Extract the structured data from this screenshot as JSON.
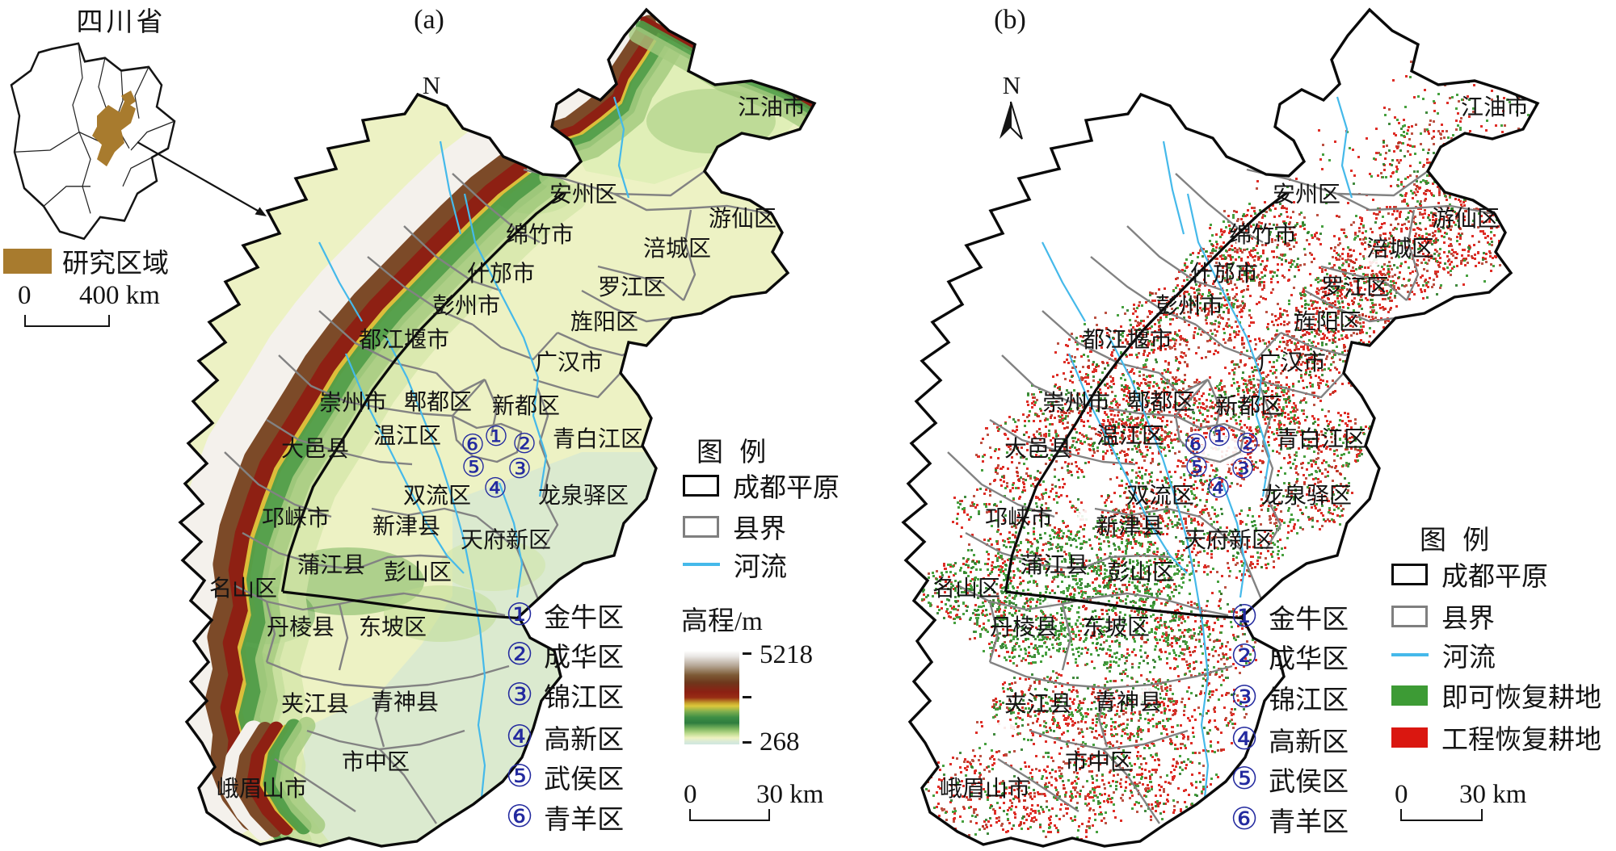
{
  "figure": {
    "inset": {
      "title": "四川省",
      "legend_label": "研究区域",
      "scalebar": {
        "start": "0",
        "end": "400 km"
      }
    },
    "panel_a": {
      "label": "(a)",
      "north_label": "N",
      "legend": {
        "title": "图 例",
        "items": [
          {
            "label": "成都平原",
            "swatch": "outline-black"
          },
          {
            "label": "县界",
            "swatch": "outline-gray"
          },
          {
            "label": "河流",
            "swatch": "line-blue"
          }
        ]
      },
      "elevation": {
        "title": "高程/m",
        "max": "5218",
        "min": "268"
      },
      "scalebar": {
        "start": "0",
        "end": "30 km"
      }
    },
    "panel_b": {
      "label": "(b)",
      "north_label": "N",
      "legend": {
        "title": "图 例",
        "items": [
          {
            "label": "成都平原",
            "swatch": "outline-black"
          },
          {
            "label": "县界",
            "swatch": "outline-gray"
          },
          {
            "label": "河流",
            "swatch": "line-blue"
          },
          {
            "label": "即可恢复耕地",
            "swatch": "fill-green"
          },
          {
            "label": "工程恢复耕地",
            "swatch": "fill-red"
          }
        ]
      },
      "districts_note": "labels identical to panel (a)",
      "scalebar": {
        "start": "0",
        "end": "30 km"
      }
    },
    "districts": [
      "江油市",
      "安州区",
      "游仙区",
      "绵竹市",
      "涪城区",
      "什邡市",
      "罗江区",
      "彭州市",
      "旌阳区",
      "都江堰市",
      "广汉市",
      "崇州市",
      "郫都区",
      "新都区",
      "青白江区",
      "大邑县",
      "温江区",
      "双流区",
      "龙泉驿区",
      "邛崃市",
      "新津县",
      "天府新区",
      "蒲江县",
      "彭山区",
      "名山区",
      "丹棱县",
      "东坡区",
      "夹江县",
      "青神县",
      "市中区",
      "峨眉山市"
    ],
    "numbered_districts": [
      {
        "num": "①",
        "name": "金牛区"
      },
      {
        "num": "②",
        "name": "成华区"
      },
      {
        "num": "③",
        "name": "锦江区"
      },
      {
        "num": "④",
        "name": "高新区"
      },
      {
        "num": "⑤",
        "name": "武侯区"
      },
      {
        "num": "⑥",
        "name": "青羊区"
      }
    ],
    "map_marker_nums": [
      "⑥",
      "①",
      "②",
      "⑤",
      "③",
      "④"
    ],
    "colors": {
      "river": "#45B9EA",
      "green_cropland": "#3D9B35",
      "red_cropland": "#DA1710",
      "county_boundary": "#7F7F7F",
      "plain_boundary": "#0A0A0A",
      "circled_number_blue": "#232A9F",
      "study_area_brown": "#A87B2E",
      "elevation_low": "#EEF2C0",
      "elevation_high": "#FFFFFF"
    }
  }
}
